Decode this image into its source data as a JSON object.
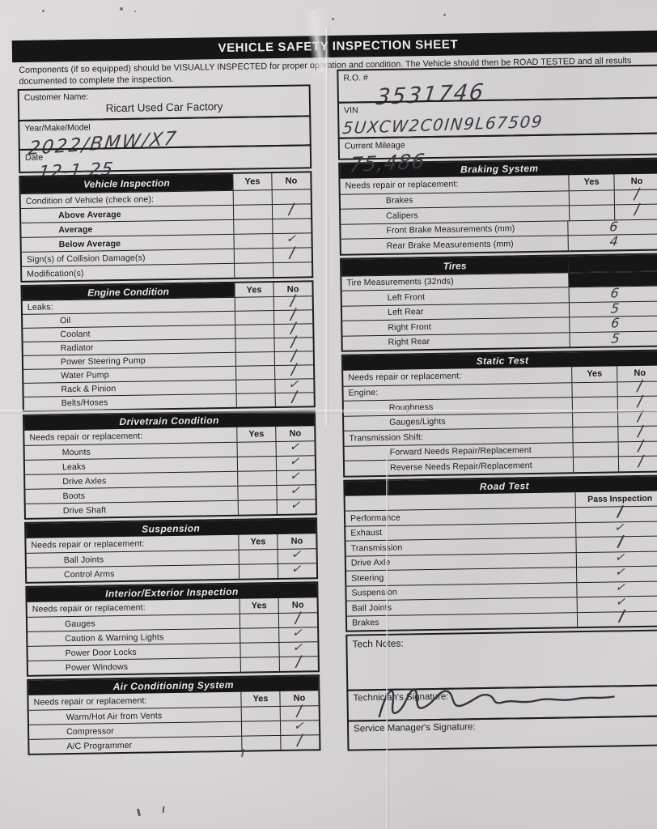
{
  "document": {
    "title": "VEHICLE SAFETY INSPECTION SHEET",
    "instructions_line1": "Components (if so equipped) should be VISUALLY INSPECTED for proper operation and condition. The Vehicle should then be ROAD TESTED and all results",
    "instructions_line2": "documented to complete the inspection."
  },
  "fields_left": [
    {
      "label": "Customer Name:",
      "value": "Ricart Used Car Factory"
    },
    {
      "label": "Year/Make/Model",
      "value": "2022/BMW/X7"
    },
    {
      "label": "Date",
      "value": "12-1-25"
    }
  ],
  "fields_right": [
    {
      "label": "R.O. #",
      "value": "3531746"
    },
    {
      "label": "VIN",
      "value": "5UXCW2C0IN9L67509"
    },
    {
      "label": "Current Mileage",
      "value": "75,486"
    }
  ],
  "columns": {
    "left": [
      {
        "title": "Vehicle Inspection",
        "header": {
          "mode": "side",
          "yes": "Yes",
          "no": "No"
        },
        "rows": [
          {
            "label": "Condition of Vehicle (check one):",
            "right": {
              "kind": "yesno",
              "yes": "",
              "no": ""
            }
          },
          {
            "label": "Above Average",
            "indent": true,
            "bold": true,
            "right": {
              "kind": "yesno",
              "yes": "",
              "no": "slash"
            }
          },
          {
            "label": "Average",
            "indent": true,
            "bold": true,
            "right": {
              "kind": "yesno",
              "yes": "",
              "no": ""
            }
          },
          {
            "label": "Below Average",
            "indent": true,
            "bold": true,
            "right": {
              "kind": "yesno",
              "yes": "",
              "no": "check"
            }
          },
          {
            "label": "Sign(s) of Collision Damage(s)",
            "right": {
              "kind": "yesno",
              "yes": "",
              "no": "slash"
            }
          },
          {
            "label": "Modification(s)",
            "right": {
              "kind": "yesno",
              "yes": "",
              "no": ""
            }
          }
        ]
      },
      {
        "title": "Engine Condition",
        "tight": true,
        "header": {
          "mode": "side",
          "yes": "Yes",
          "no": "No"
        },
        "rows": [
          {
            "label": "Leaks:",
            "right": {
              "kind": "yesno",
              "yes": "",
              "no": "slash"
            }
          },
          {
            "label": "Oil",
            "indent": true,
            "right": {
              "kind": "yesno",
              "yes": "",
              "no": "slash"
            }
          },
          {
            "label": "Coolant",
            "indent": true,
            "right": {
              "kind": "yesno",
              "yes": "",
              "no": "slash"
            }
          },
          {
            "label": "Radiator",
            "indent": true,
            "right": {
              "kind": "yesno",
              "yes": "",
              "no": "slash"
            }
          },
          {
            "label": "Power Steering Pump",
            "indent": true,
            "right": {
              "kind": "yesno",
              "yes": "",
              "no": "slash"
            }
          },
          {
            "label": "Water Pump",
            "indent": true,
            "right": {
              "kind": "yesno",
              "yes": "",
              "no": "slash"
            }
          },
          {
            "label": "Rack & Pinion",
            "indent": true,
            "right": {
              "kind": "yesno",
              "yes": "",
              "no": "check"
            }
          },
          {
            "label": "Belts/Hoses",
            "indent": true,
            "right": {
              "kind": "yesno",
              "yes": "",
              "no": "slash"
            }
          }
        ]
      },
      {
        "title": "Drivetrain Condition",
        "header": {
          "mode": "full"
        },
        "subheader": {
          "label": "Needs repair or replacement:",
          "yes": "Yes",
          "no": "No"
        },
        "rows": [
          {
            "label": "Mounts",
            "indent": true,
            "right": {
              "kind": "yesno",
              "yes": "",
              "no": "check"
            }
          },
          {
            "label": "Leaks",
            "indent": true,
            "right": {
              "kind": "yesno",
              "yes": "",
              "no": "check"
            }
          },
          {
            "label": "Drive Axles",
            "indent": true,
            "right": {
              "kind": "yesno",
              "yes": "",
              "no": "check"
            }
          },
          {
            "label": "Boots",
            "indent": true,
            "right": {
              "kind": "yesno",
              "yes": "",
              "no": "check"
            }
          },
          {
            "label": "Drive Shaft",
            "indent": true,
            "right": {
              "kind": "yesno",
              "yes": "",
              "no": "check"
            }
          }
        ]
      },
      {
        "title": "Suspension",
        "header": {
          "mode": "full"
        },
        "subheader": {
          "label": "Needs repair or replacement:",
          "yes": "Yes",
          "no": "No"
        },
        "rows": [
          {
            "label": "Ball Joints",
            "indent": true,
            "right": {
              "kind": "yesno",
              "yes": "",
              "no": "check"
            }
          },
          {
            "label": "Control Arms",
            "indent": true,
            "right": {
              "kind": "yesno",
              "yes": "",
              "no": "check"
            }
          }
        ]
      },
      {
        "title": "Interior/Exterior Inspection",
        "header": {
          "mode": "full"
        },
        "subheader": {
          "label": "Needs repair or replacement:",
          "yes": "Yes",
          "no": "No"
        },
        "rows": [
          {
            "label": "Gauges",
            "indent": true,
            "right": {
              "kind": "yesno",
              "yes": "",
              "no": "slash"
            }
          },
          {
            "label": "Caution & Warning Lights",
            "indent": true,
            "right": {
              "kind": "yesno",
              "yes": "",
              "no": "check"
            }
          },
          {
            "label": "Power Door Locks",
            "indent": true,
            "right": {
              "kind": "yesno",
              "yes": "",
              "no": "check"
            }
          },
          {
            "label": "Power Windows",
            "indent": true,
            "right": {
              "kind": "yesno",
              "yes": "",
              "no": "slash"
            }
          }
        ]
      },
      {
        "title": "Air Conditioning System",
        "header": {
          "mode": "full"
        },
        "subheader": {
          "label": "Needs repair or replacement:",
          "yes": "Yes",
          "no": "No"
        },
        "rows": [
          {
            "label": "Warm/Hot Air from Vents",
            "indent": true,
            "right": {
              "kind": "yesno",
              "yes": "",
              "no": "slash"
            }
          },
          {
            "label": "Compressor",
            "indent": true,
            "right": {
              "kind": "yesno",
              "yes": "",
              "no": "check"
            }
          },
          {
            "label": "A/C Programmer",
            "indent": true,
            "right": {
              "kind": "yesno",
              "yes": "",
              "no": "slash"
            }
          }
        ]
      }
    ],
    "right": [
      {
        "title": "Braking System",
        "header": {
          "mode": "full"
        },
        "subheader": {
          "label": "Needs repair or replacement:",
          "yes": "Yes",
          "no": "No"
        },
        "rows": [
          {
            "label": "Brakes",
            "indent": true,
            "right": {
              "kind": "yesno",
              "yes": "",
              "no": "slash"
            }
          },
          {
            "label": "Calipers",
            "indent": true,
            "right": {
              "kind": "yesno",
              "yes": "",
              "no": "slash"
            }
          },
          {
            "label": "Front Brake Measurements (mm)",
            "indent": true,
            "right": {
              "kind": "value",
              "text": "6"
            }
          },
          {
            "label": "Rear Brake Measurements (mm)",
            "indent": true,
            "right": {
              "kind": "value",
              "text": "4"
            }
          }
        ]
      },
      {
        "title": "Tires",
        "header": {
          "mode": "side-black"
        },
        "rows": [
          {
            "label": "Tire Measurements (32nds)",
            "right": {
              "kind": "black"
            }
          },
          {
            "label": "Left Front",
            "indent": true,
            "right": {
              "kind": "value",
              "text": "6"
            }
          },
          {
            "label": "Left Rear",
            "indent": true,
            "right": {
              "kind": "value",
              "text": "5"
            }
          },
          {
            "label": "Right Front",
            "indent": true,
            "right": {
              "kind": "value",
              "text": "6"
            }
          },
          {
            "label": "Right Rear",
            "indent": true,
            "right": {
              "kind": "value",
              "text": "5"
            }
          }
        ]
      },
      {
        "title": "Static Test",
        "header": {
          "mode": "full"
        },
        "subheader": {
          "label": "Needs repair or replacement:",
          "yes": "Yes",
          "no": "No"
        },
        "rows": [
          {
            "label": "Engine:",
            "right": {
              "kind": "yesno",
              "yes": "",
              "no": "slash"
            }
          },
          {
            "label": "Roughness",
            "indent": true,
            "right": {
              "kind": "yesno",
              "yes": "",
              "no": "slash"
            }
          },
          {
            "label": "Gauges/Lights",
            "indent": true,
            "right": {
              "kind": "yesno",
              "yes": "",
              "no": "slash"
            }
          },
          {
            "label": "Transmission Shift:",
            "right": {
              "kind": "yesno",
              "yes": "",
              "no": "slash"
            }
          },
          {
            "label": "Forward Needs Repair/Replacement",
            "indent": true,
            "right": {
              "kind": "yesno",
              "yes": "",
              "no": "slash"
            }
          },
          {
            "label": "Reverse Needs Repair/Replacement",
            "indent": true,
            "right": {
              "kind": "yesno",
              "yes": "",
              "no": "slash"
            }
          }
        ]
      },
      {
        "title": "Road Test",
        "header": {
          "mode": "full"
        },
        "subheader": {
          "label": "",
          "pass": "Pass Inspection"
        },
        "rows": [
          {
            "label": "Performance",
            "right": {
              "kind": "pass",
              "mark": "slash"
            }
          },
          {
            "label": "Exhaust",
            "right": {
              "kind": "pass",
              "mark": "check"
            }
          },
          {
            "label": "Transmission",
            "right": {
              "kind": "pass",
              "mark": "slash"
            }
          },
          {
            "label": "Drive Axle",
            "right": {
              "kind": "pass",
              "mark": "check"
            }
          },
          {
            "label": "Steering",
            "right": {
              "kind": "pass",
              "mark": "check"
            }
          },
          {
            "label": "Suspension",
            "right": {
              "kind": "pass",
              "mark": "check"
            }
          },
          {
            "label": "Ball Joints",
            "right": {
              "kind": "pass",
              "mark": "check"
            }
          },
          {
            "label": "Brakes",
            "right": {
              "kind": "pass",
              "mark": "slash"
            }
          }
        ]
      }
    ]
  },
  "footer": {
    "tech_notes_label": "Tech Notes:",
    "technician_signature_label": "Technician's Signature:",
    "service_manager_signature_label": "Service Manager's Signature:",
    "technician_signed": true
  },
  "colors": {
    "paper": "#d7d4d5",
    "banner": "#161616",
    "ink": "#1d1d1d",
    "pen": "#3a3a43"
  }
}
